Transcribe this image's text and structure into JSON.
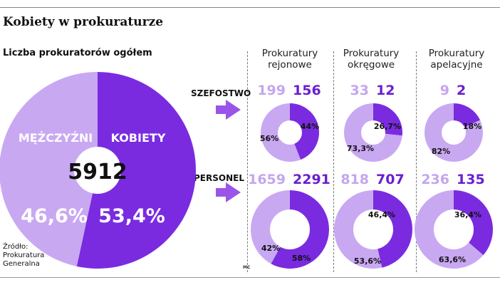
{
  "title": "Kobiety w prokuraturze",
  "subtitle": "Liczba prokuratorów ogółem",
  "colors": {
    "women": "#7a2be0",
    "men": "#c9a8f2",
    "light_text": "#c4a6ee",
    "dark_text": "#6a1fd0"
  },
  "columns": [
    "Prokuratury\nrejonowe",
    "Prokuratury\nokręgowe",
    "Prokuratury\napelacyjne"
  ],
  "rows": [
    "SZEFOSTWO",
    "PERSONEL"
  ],
  "source": "Źródło:\nProkuratura\nGeneralna",
  "credit": "MC",
  "chart_data": [
    {
      "type": "pie",
      "total": "5912",
      "categories": [
        "MĘŻCZYŹNI",
        "KOBIETY"
      ],
      "values": [
        46.6,
        53.4
      ],
      "labels": [
        "46,6%",
        "53,4%"
      ]
    },
    {
      "type": "pie",
      "row": "SZEFOSTWO",
      "column": "Prokuratury rejonowe",
      "counts": [
        "199",
        "156"
      ],
      "values": [
        56,
        44
      ],
      "labels": [
        "56%",
        "44%"
      ]
    },
    {
      "type": "pie",
      "row": "SZEFOSTWO",
      "column": "Prokuratury okręgowe",
      "counts": [
        "33",
        "12"
      ],
      "values": [
        73.3,
        26.7
      ],
      "labels": [
        "73,3%",
        "26,7%"
      ]
    },
    {
      "type": "pie",
      "row": "SZEFOSTWO",
      "column": "Prokuratury apelacyjne",
      "counts": [
        "9",
        "2"
      ],
      "values": [
        82,
        18
      ],
      "labels": [
        "82%",
        "18%"
      ]
    },
    {
      "type": "pie",
      "row": "PERSONEL",
      "column": "Prokuratury rejonowe",
      "counts": [
        "1659",
        "2291"
      ],
      "values": [
        42,
        58
      ],
      "labels": [
        "42%",
        "58%"
      ]
    },
    {
      "type": "pie",
      "row": "PERSONEL",
      "column": "Prokuratury okręgowe",
      "counts": [
        "818",
        "707"
      ],
      "values": [
        53.6,
        46.4
      ],
      "labels": [
        "53,6%",
        "46,4%"
      ]
    },
    {
      "type": "pie",
      "row": "PERSONEL",
      "column": "Prokuratury apelacyjne",
      "counts": [
        "236",
        "135"
      ],
      "values": [
        63.6,
        36.4
      ],
      "labels": [
        "63,6%",
        "36,4%"
      ]
    }
  ]
}
